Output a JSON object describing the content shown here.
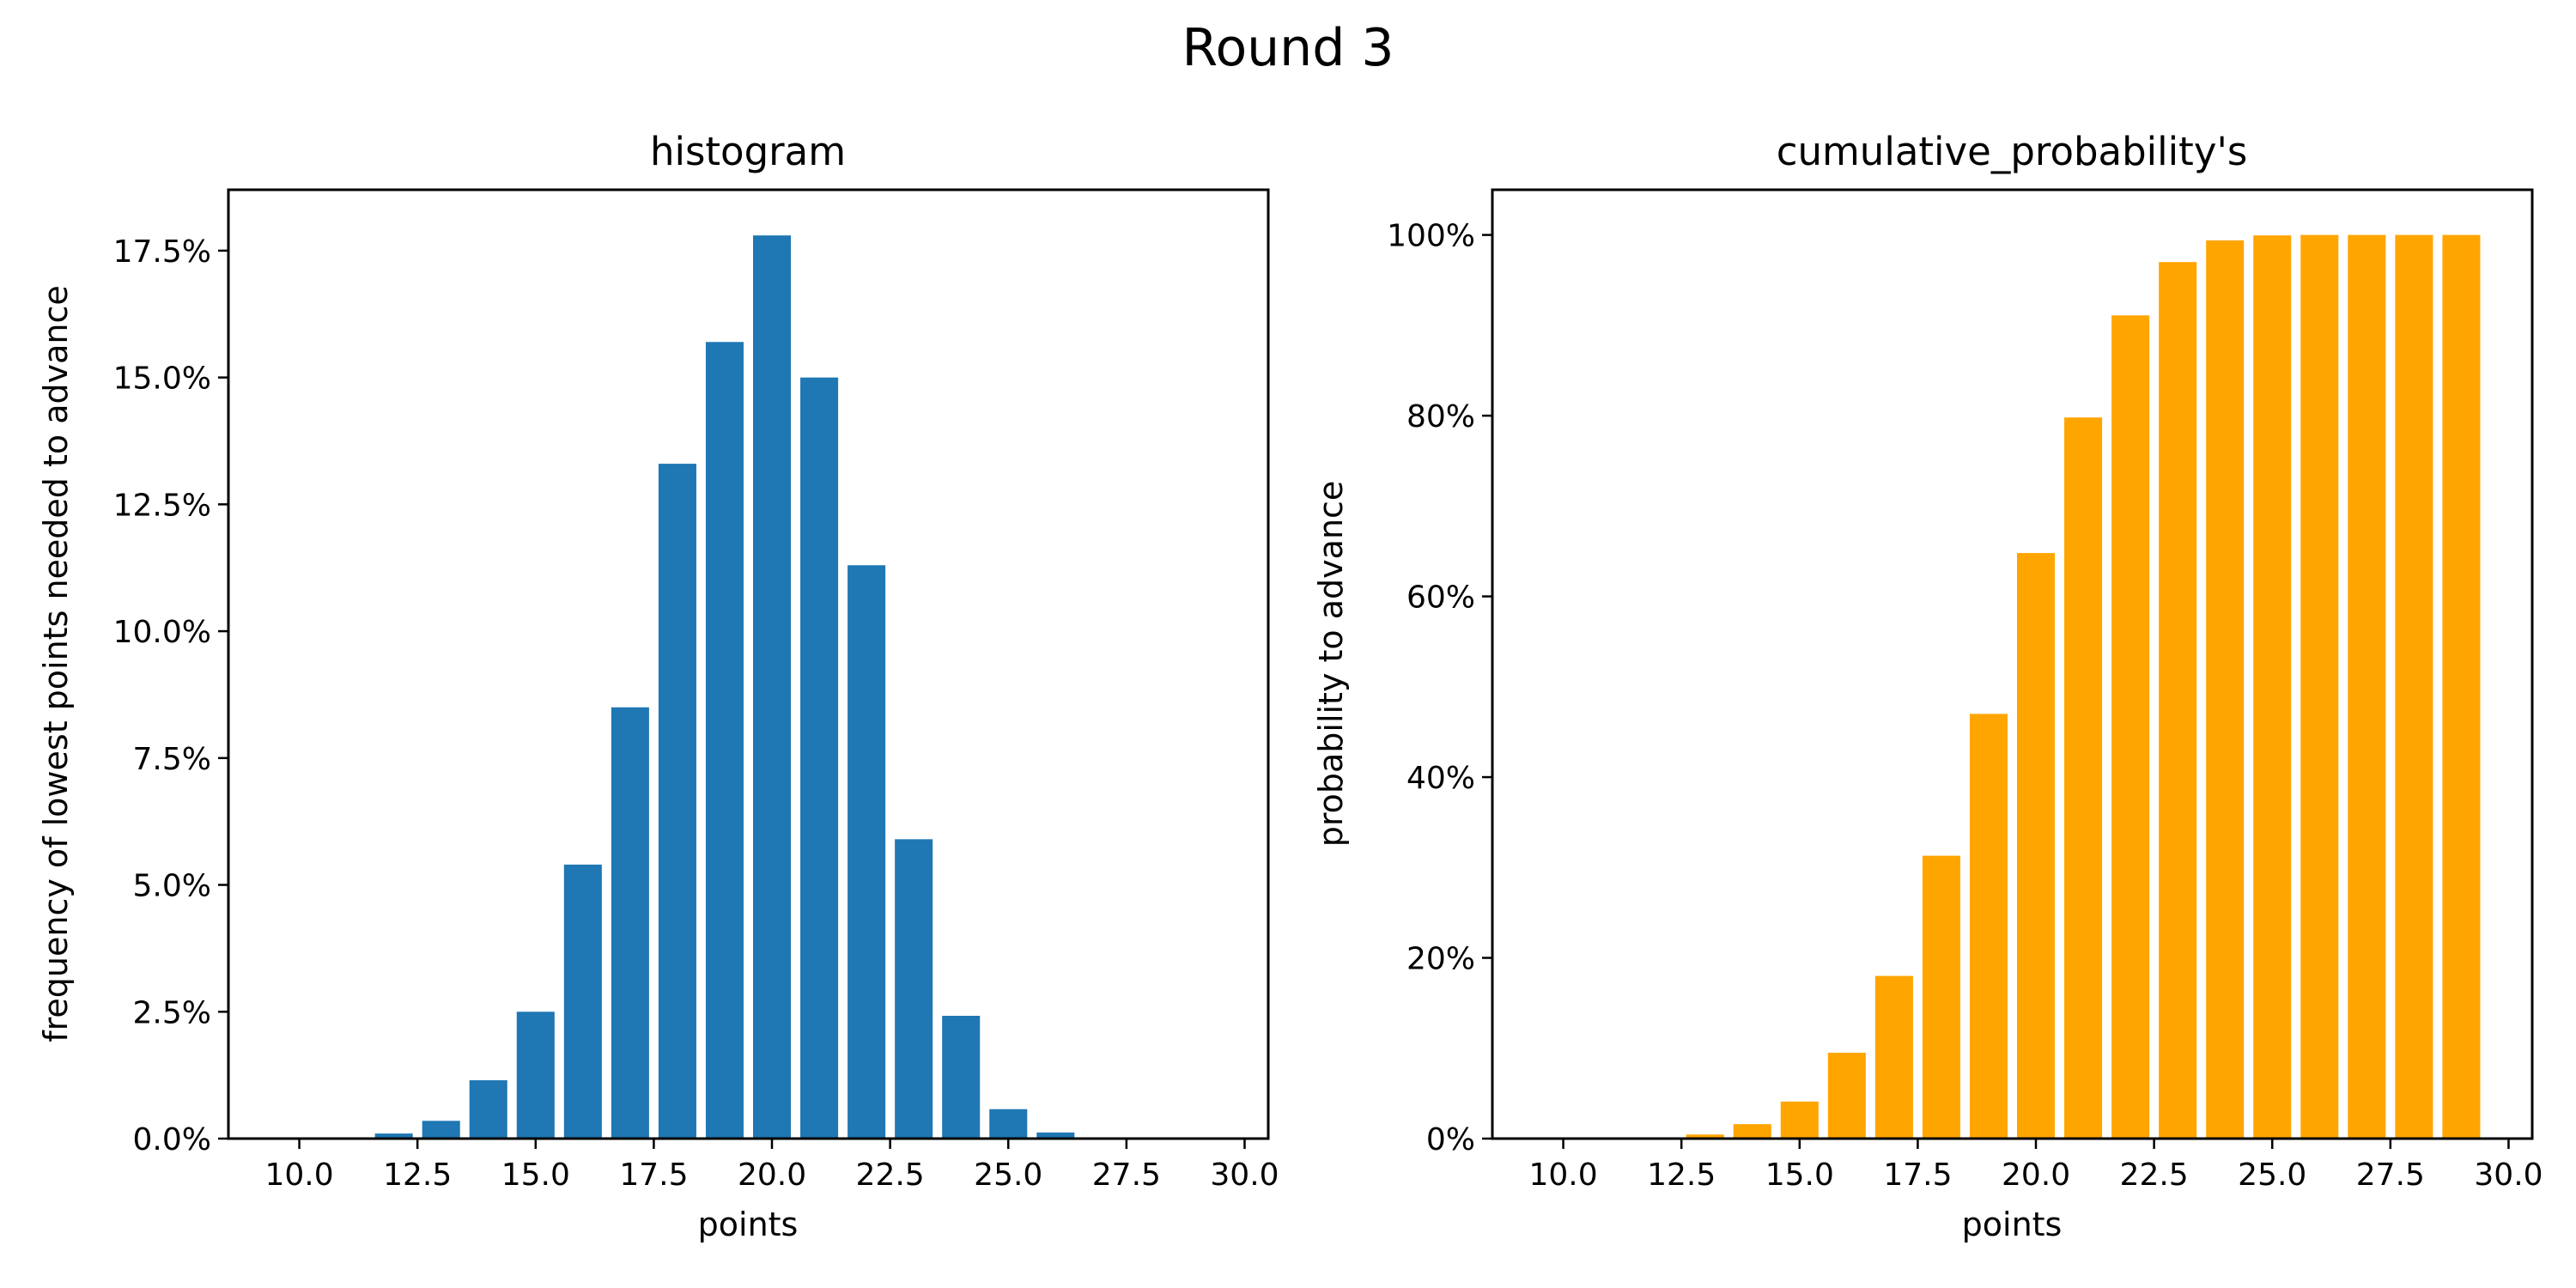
{
  "figure": {
    "suptitle": "Round 3"
  },
  "chart_data": [
    {
      "type": "bar",
      "title": "histogram",
      "xlabel": "points",
      "ylabel": "frequency of lowest points needed to advance",
      "color": "#1f77b4",
      "x": [
        10,
        11,
        12,
        13,
        14,
        15,
        16,
        17,
        18,
        19,
        20,
        21,
        22,
        23,
        24,
        25,
        26,
        27,
        28,
        29
      ],
      "values": [
        0.0,
        0.0,
        0.1,
        0.35,
        1.15,
        2.5,
        5.4,
        8.5,
        13.3,
        15.7,
        17.8,
        15.0,
        11.3,
        5.9,
        2.42,
        0.58,
        0.12,
        0.02,
        0.0,
        0.0
      ],
      "value_unit": "%",
      "xlim": [
        8.5,
        30.5
      ],
      "ylim": [
        0,
        18.7
      ],
      "xticks": [
        10.0,
        12.5,
        15.0,
        17.5,
        20.0,
        22.5,
        25.0,
        27.5,
        30.0
      ],
      "xtick_labels": [
        "10.0",
        "12.5",
        "15.0",
        "17.5",
        "20.0",
        "22.5",
        "25.0",
        "27.5",
        "30.0"
      ],
      "yticks": [
        0,
        2.5,
        5.0,
        7.5,
        10.0,
        12.5,
        15.0,
        17.5
      ],
      "ytick_labels": [
        "0.0%",
        "2.5%",
        "5.0%",
        "7.5%",
        "10.0%",
        "12.5%",
        "15.0%",
        "17.5%"
      ],
      "grid": false
    },
    {
      "type": "bar",
      "title": "cumulative_probability's",
      "xlabel": "points",
      "ylabel": "probability to advance",
      "color": "#ffa500",
      "x": [
        10,
        11,
        12,
        13,
        14,
        15,
        16,
        17,
        18,
        19,
        20,
        21,
        22,
        23,
        24,
        25,
        26,
        27,
        28,
        29
      ],
      "values": [
        0.0,
        0.0,
        0.1,
        0.45,
        1.6,
        4.1,
        9.5,
        18.0,
        31.3,
        47.0,
        64.8,
        79.8,
        91.1,
        97.0,
        99.4,
        99.95,
        100.0,
        100.0,
        100.0,
        100.0
      ],
      "value_unit": "%",
      "xlim": [
        8.5,
        30.5
      ],
      "ylim": [
        0,
        105
      ],
      "xticks": [
        10.0,
        12.5,
        15.0,
        17.5,
        20.0,
        22.5,
        25.0,
        27.5,
        30.0
      ],
      "xtick_labels": [
        "10.0",
        "12.5",
        "15.0",
        "17.5",
        "20.0",
        "22.5",
        "25.0",
        "27.5",
        "30.0"
      ],
      "yticks": [
        0,
        20,
        40,
        60,
        80,
        100
      ],
      "ytick_labels": [
        "0%",
        "20%",
        "40%",
        "60%",
        "80%",
        "100%"
      ],
      "grid": false
    }
  ]
}
